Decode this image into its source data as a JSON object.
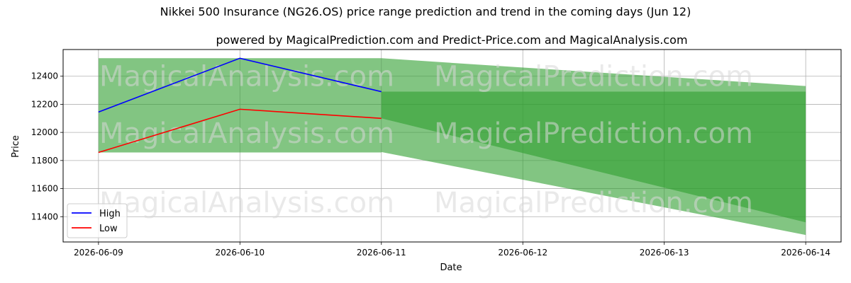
{
  "chart_data": {
    "type": "area",
    "title": "Nikkei 500 Insurance (NG26.OS) price range prediction and trend in the coming days (Jun 12)",
    "subtitle": "powered by MagicalPrediction.com and Predict-Price.com and MagicalAnalysis.com",
    "xlabel": "Date",
    "ylabel": "Price",
    "x_ticks": [
      "2026-06-09",
      "2026-06-10",
      "2026-06-11",
      "2026-06-12",
      "2026-06-13",
      "2026-06-14"
    ],
    "y_ticks": [
      11400,
      11600,
      11800,
      12000,
      12200,
      12400
    ],
    "xlim": [
      "2026-06-08 18:00",
      "2026-06-14 06:00"
    ],
    "ylim": [
      11220,
      12590
    ],
    "grid": true,
    "legend_position": "lower-left",
    "series": [
      {
        "name": "High",
        "color": "#0000ff",
        "x": [
          "2026-06-09",
          "2026-06-10",
          "2026-06-11"
        ],
        "values": [
          12145,
          12528,
          12290
        ]
      },
      {
        "name": "Low",
        "color": "#ff0000",
        "x": [
          "2026-06-09",
          "2026-06-10",
          "2026-06-11"
        ],
        "values": [
          11857,
          12165,
          12100
        ]
      }
    ],
    "bands": [
      {
        "color": "#2e9e2e",
        "opacity": 0.6,
        "x": [
          "2026-06-09",
          "2026-06-11"
        ],
        "upper": [
          12528,
          12528
        ],
        "lower": [
          11857,
          11857
        ]
      },
      {
        "color": "#2e9e2e",
        "opacity": 0.6,
        "x": [
          "2026-06-11",
          "2026-06-14"
        ],
        "upper": [
          12528,
          12330
        ],
        "lower": [
          11860,
          11270
        ]
      },
      {
        "color": "#2e9e2e",
        "opacity": 0.6,
        "x": [
          "2026-06-11",
          "2026-06-14"
        ],
        "upper": [
          12290,
          12290
        ],
        "lower": [
          12100,
          11360
        ]
      }
    ],
    "watermarks": [
      "MagicalAnalysis.com",
      "MagicalPrediction.com"
    ]
  }
}
